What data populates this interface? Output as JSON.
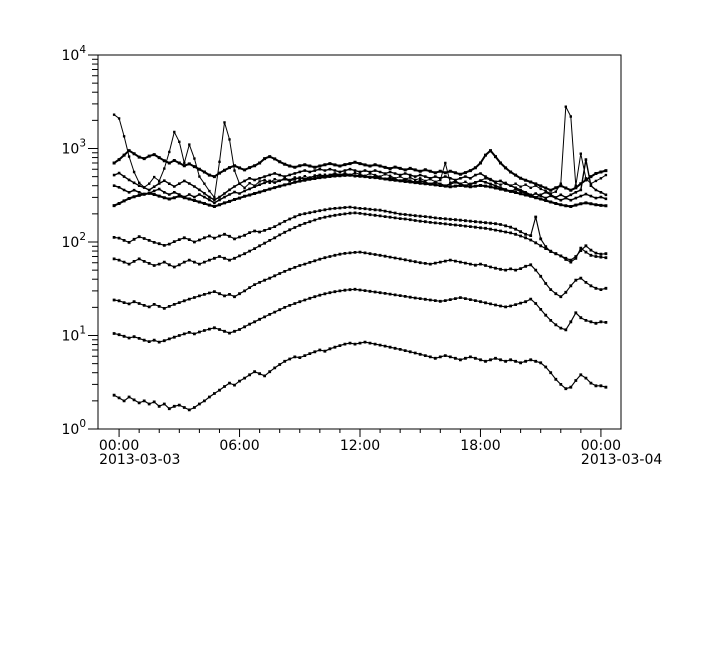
{
  "page": {
    "background_color": "#ffffff",
    "foreground_color": "#000000"
  },
  "chart_data": {
    "type": "line",
    "title": "",
    "grid": false,
    "legend": "none",
    "color": "#000000",
    "x_axis": {
      "range_hours": [
        -1.05,
        25.0
      ],
      "major_tick_hours": [
        0,
        6,
        12,
        18,
        24
      ],
      "major_tick_labels": [
        "00:00",
        "06:00",
        "12:00",
        "18:00",
        "00:00"
      ],
      "minor_tick_interval_hours": 1,
      "date_label_left": "2013-03-03",
      "date_label_right": "2013-03-04"
    },
    "y_axis": {
      "scale": "log",
      "range": [
        1,
        10000
      ],
      "major_tick_exponents": [
        0,
        1,
        2,
        3,
        4
      ],
      "tick_label_base": "10",
      "minor_ticks": "2-9 per decade"
    },
    "x_start_hour": -0.25,
    "x_step_hours": 0.25,
    "series": [
      {
        "name": "trace-01-spiky",
        "line_width": 1.0,
        "marker_size": 1.2,
        "values": [
          2300,
          2100,
          1350,
          820,
          560,
          430,
          385,
          420,
          495,
          450,
          610,
          920,
          1500,
          1180,
          700,
          1100,
          780,
          500,
          420,
          350,
          300,
          720,
          1900,
          1250,
          580,
          420,
          380,
          425,
          400,
          445,
          460,
          430,
          470,
          450,
          485,
          460,
          490,
          470,
          505,
          480,
          515,
          490,
          525,
          505,
          530,
          515,
          540,
          520,
          550,
          530,
          510,
          540,
          520,
          500,
          530,
          510,
          480,
          500,
          470,
          490,
          460,
          480,
          450,
          470,
          440,
          460,
          700,
          430,
          450,
          420,
          440,
          410,
          430,
          455,
          480,
          460,
          430,
          410,
          430,
          400,
          420,
          390,
          410,
          380,
          400,
          370,
          350,
          330,
          345,
          420,
          2800,
          2200,
          400,
          880,
          480,
          420,
          450,
          480,
          520
        ]
      },
      {
        "name": "trace-02",
        "line_width": 2.0,
        "marker_size": 1.5,
        "values": [
          700,
          760,
          850,
          950,
          880,
          810,
          780,
          830,
          860,
          800,
          740,
          700,
          745,
          700,
          655,
          685,
          640,
          600,
          560,
          520,
          500,
          545,
          585,
          625,
          655,
          620,
          590,
          625,
          655,
          700,
          780,
          820,
          775,
          720,
          680,
          650,
          630,
          655,
          670,
          650,
          630,
          650,
          670,
          690,
          668,
          650,
          672,
          690,
          712,
          690,
          668,
          650,
          670,
          650,
          628,
          610,
          632,
          612,
          590,
          612,
          590,
          570,
          592,
          570,
          550,
          572,
          550,
          572,
          550,
          530,
          552,
          580,
          622,
          700,
          850,
          950,
          820,
          700,
          620,
          560,
          520,
          480,
          458,
          438,
          418,
          398,
          378,
          358,
          380,
          400,
          378,
          358,
          380,
          420,
          460,
          500,
          540,
          560,
          580
        ]
      },
      {
        "name": "trace-03",
        "line_width": 1.4,
        "marker_size": 1.3,
        "values": [
          520,
          545,
          500,
          462,
          430,
          400,
          382,
          360,
          390,
          422,
          452,
          420,
          392,
          420,
          450,
          422,
          392,
          362,
          332,
          302,
          282,
          302,
          330,
          362,
          392,
          420,
          450,
          480,
          462,
          480,
          500,
          522,
          542,
          520,
          500,
          522,
          542,
          562,
          580,
          562,
          580,
          600,
          582,
          600,
          582,
          562,
          580,
          600,
          582,
          562,
          580,
          560,
          580,
          560,
          540,
          560,
          540,
          520,
          540,
          520,
          500,
          520,
          500,
          480,
          500,
          480,
          500,
          480,
          460,
          480,
          500,
          480,
          520,
          540,
          500,
          470,
          440,
          450,
          420,
          400,
          380,
          360,
          340,
          320,
          300,
          320,
          340,
          320,
          300,
          320,
          300,
          320,
          340,
          360,
          760,
          400,
          360,
          340,
          320
        ]
      },
      {
        "name": "trace-04",
        "line_width": 1.4,
        "marker_size": 1.3,
        "values": [
          400,
          385,
          360,
          340,
          358,
          340,
          322,
          330,
          352,
          368,
          340,
          322,
          340,
          322,
          302,
          322,
          302,
          322,
          302,
          282,
          262,
          282,
          302,
          322,
          342,
          330,
          352,
          370,
          390,
          410,
          430,
          450,
          432,
          452,
          470,
          452,
          470,
          488,
          470,
          488,
          505,
          522,
          505,
          522,
          540,
          522,
          540,
          522,
          505,
          522,
          505,
          488,
          505,
          488,
          470,
          488,
          470,
          452,
          470,
          452,
          435,
          452,
          435,
          418,
          435,
          418,
          400,
          418,
          435,
          418,
          400,
          418,
          435,
          452,
          435,
          418,
          400,
          382,
          365,
          348,
          365,
          348,
          330,
          312,
          330,
          312,
          295,
          312,
          295,
          280,
          295,
          280,
          295,
          310,
          325,
          310,
          295,
          302,
          290
        ]
      },
      {
        "name": "trace-05",
        "line_width": 2.0,
        "marker_size": 1.5,
        "values": [
          245,
          258,
          275,
          292,
          305,
          315,
          325,
          332,
          322,
          310,
          298,
          288,
          298,
          310,
          298,
          288,
          278,
          268,
          258,
          248,
          240,
          250,
          262,
          272,
          285,
          295,
          308,
          318,
          330,
          342,
          355,
          368,
          382,
          395,
          408,
          420,
          435,
          448,
          458,
          468,
          478,
          488,
          495,
          502,
          508,
          512,
          515,
          518,
          512,
          506,
          500,
          494,
          488,
          480,
          472,
          464,
          458,
          450,
          444,
          438,
          432,
          426,
          420,
          414,
          408,
          402,
          396,
          390,
          396,
          402,
          396,
          390,
          396,
          402,
          396,
          388,
          378,
          368,
          358,
          348,
          338,
          328,
          318,
          308,
          298,
          288,
          278,
          268,
          258,
          250,
          244,
          240,
          248,
          256,
          262,
          256,
          250,
          246,
          244
        ]
      },
      {
        "name": "trace-06",
        "line_width": 1.15,
        "marker_size": 1.4,
        "values": [
          112,
          110,
          104,
          99,
          107,
          114,
          109,
          104,
          99,
          96,
          92,
          95,
          101,
          106,
          111,
          106,
          100,
          105,
          111,
          116,
          110,
          116,
          121,
          115,
          108,
          113,
          118,
          126,
          131,
          128,
          133,
          139,
          146,
          156,
          166,
          176,
          186,
          196,
          201,
          206,
          211,
          216,
          221,
          226,
          229,
          231,
          234,
          236,
          232,
          229,
          227,
          224,
          221,
          219,
          214,
          209,
          204,
          199,
          197,
          194,
          191,
          189,
          187,
          184,
          181,
          179,
          177,
          175,
          173,
          171,
          169,
          167,
          165,
          163,
          161,
          159,
          157,
          154,
          149,
          144,
          137,
          129,
          121,
          117,
          185,
          108,
          89,
          79,
          75,
          71,
          67,
          64,
          70,
          81,
          91,
          82,
          76,
          74,
          75
        ]
      },
      {
        "name": "trace-07",
        "line_width": 1.15,
        "marker_size": 1.4,
        "values": [
          66,
          64,
          61,
          58,
          62,
          66,
          62,
          59,
          56,
          58,
          61,
          57,
          54,
          57,
          61,
          64,
          61,
          58,
          61,
          64,
          67,
          70,
          67,
          64,
          67,
          71,
          75,
          80,
          85,
          91,
          97,
          104,
          111,
          119,
          127,
          135,
          143,
          151,
          158,
          165,
          172,
          179,
          184,
          189,
          193,
          197,
          200,
          203,
          205,
          202,
          199,
          196,
          193,
          190,
          187,
          184,
          181,
          178,
          176,
          173,
          170,
          167,
          165,
          162,
          160,
          158,
          156,
          154,
          152,
          150,
          148,
          146,
          144,
          142,
          140,
          137,
          134,
          131,
          128,
          125,
          121,
          116,
          111,
          105,
          98,
          91,
          85,
          80,
          75,
          71,
          65,
          61,
          67,
          86,
          78,
          72,
          70,
          69,
          68
        ]
      },
      {
        "name": "trace-08",
        "line_width": 1.15,
        "marker_size": 1.4,
        "values": [
          24,
          23.5,
          22.5,
          21.8,
          23,
          22,
          21,
          20.2,
          21.5,
          20.5,
          19.5,
          20.5,
          21.5,
          22.5,
          23.5,
          24.5,
          25.5,
          26.5,
          27.5,
          28.5,
          29.5,
          28,
          26.5,
          27.5,
          26,
          28,
          30,
          32.5,
          35,
          37,
          39,
          41,
          43.5,
          46,
          48.5,
          51,
          53.5,
          56,
          58,
          60.5,
          63,
          65.5,
          68,
          70,
          72,
          74,
          75.5,
          76.5,
          77.5,
          78,
          76.5,
          75,
          73.5,
          72,
          70.5,
          69,
          67.5,
          66,
          64.5,
          63,
          61.5,
          60,
          59,
          58,
          59.5,
          61,
          62.5,
          64,
          62.5,
          61,
          59.5,
          58,
          56.5,
          58,
          56,
          54,
          52.5,
          51,
          50,
          51.5,
          50,
          52,
          55,
          57,
          50,
          43,
          36,
          31,
          28,
          26,
          29,
          34,
          39,
          41,
          37,
          34,
          32,
          31,
          32
        ]
      },
      {
        "name": "trace-09",
        "line_width": 1.15,
        "marker_size": 1.4,
        "values": [
          10.5,
          10.2,
          9.8,
          9.4,
          9.7,
          9.3,
          8.9,
          8.6,
          8.9,
          8.5,
          8.8,
          9.2,
          9.6,
          10,
          10.4,
          10.8,
          10.4,
          10.9,
          11.3,
          11.7,
          12.1,
          11.6,
          11.1,
          10.6,
          11.1,
          11.6,
          12.4,
          13.2,
          14,
          14.9,
          15.8,
          16.8,
          17.8,
          18.9,
          20,
          21,
          22,
          23,
          24,
          25,
          26,
          27,
          27.9,
          28.7,
          29.4,
          30,
          30.5,
          30.9,
          31.2,
          30.7,
          30.2,
          29.7,
          29.2,
          28.7,
          28.2,
          27.7,
          27.2,
          26.7,
          26.2,
          25.7,
          25.2,
          24.8,
          24.4,
          24,
          23.6,
          23.2,
          23.6,
          24.2,
          24.8,
          25.4,
          24.8,
          24.2,
          23.6,
          23,
          22.4,
          21.8,
          21.2,
          20.7,
          20.2,
          20.7,
          21.4,
          22.2,
          23,
          24.5,
          22,
          19,
          16.5,
          14.5,
          13,
          12,
          11.5,
          14,
          17.5,
          15.5,
          14.5,
          14,
          13.5,
          14,
          13.8
        ]
      },
      {
        "name": "trace-10",
        "line_width": 1.15,
        "marker_size": 1.4,
        "values": [
          2.3,
          2.15,
          2.0,
          2.2,
          2.05,
          1.9,
          2.0,
          1.85,
          1.95,
          1.75,
          1.85,
          1.65,
          1.75,
          1.8,
          1.7,
          1.6,
          1.7,
          1.85,
          2.0,
          2.2,
          2.4,
          2.6,
          2.85,
          3.1,
          2.95,
          3.25,
          3.5,
          3.8,
          4.1,
          3.9,
          3.7,
          4.1,
          4.5,
          4.9,
          5.3,
          5.6,
          5.9,
          5.8,
          6.1,
          6.4,
          6.7,
          7.0,
          6.8,
          7.2,
          7.5,
          7.8,
          8.1,
          8.3,
          8.1,
          8.3,
          8.5,
          8.3,
          8.1,
          7.9,
          7.7,
          7.5,
          7.3,
          7.1,
          6.9,
          6.7,
          6.5,
          6.3,
          6.1,
          5.9,
          5.7,
          5.9,
          6.1,
          5.9,
          5.7,
          5.5,
          5.7,
          5.9,
          5.7,
          5.5,
          5.3,
          5.5,
          5.7,
          5.5,
          5.3,
          5.5,
          5.3,
          5.1,
          5.3,
          5.5,
          5.3,
          5.1,
          4.6,
          4.0,
          3.4,
          3.0,
          2.7,
          2.8,
          3.3,
          3.8,
          3.5,
          3.1,
          2.9,
          2.9,
          2.8
        ]
      }
    ]
  }
}
